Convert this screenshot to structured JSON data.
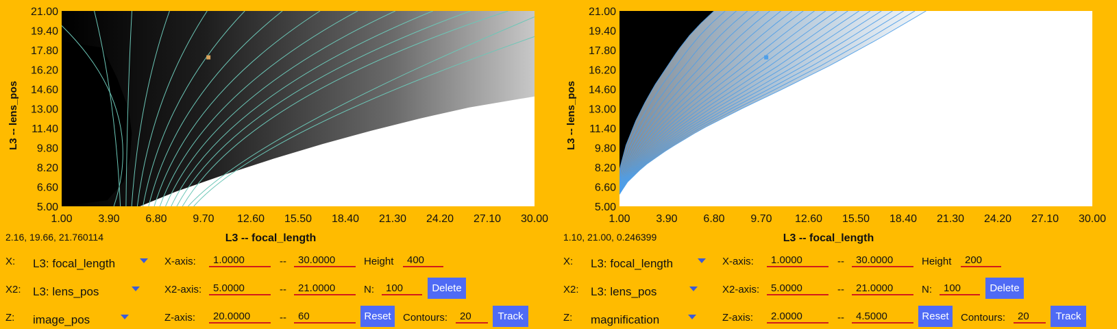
{
  "chart_data": [
    {
      "type": "heatmap",
      "title": "",
      "xlabel": "L3 -- focal_length",
      "ylabel": "L3 -- lens_pos",
      "xlim": [
        1.0,
        30.0
      ],
      "ylim": [
        5.0,
        21.0
      ],
      "x_ticks": [
        "1.00",
        "3.90",
        "6.80",
        "9.70",
        "12.60",
        "15.50",
        "18.40",
        "21.30",
        "24.20",
        "27.10",
        "30.00"
      ],
      "y_ticks": [
        "21.00",
        "19.40",
        "17.80",
        "16.20",
        "14.60",
        "13.00",
        "11.40",
        "9.80",
        "8.20",
        "6.60",
        "5.00"
      ],
      "zlim": [
        20,
        60
      ],
      "contours": 20,
      "colormap": "black-to-white",
      "contour_color": "#6cc7b7",
      "marker": {
        "x": 10.0,
        "y": 17.2,
        "color": "#d8a25a"
      },
      "boundary_fl": [
        2.9,
        6.1,
        8.9,
        11.5,
        14.1,
        16.7,
        19.3,
        21.9,
        24.5,
        27.1,
        29.7
      ],
      "boundary_lp": [
        21.0,
        21.0,
        21.0,
        21.0,
        21.0,
        21.0,
        21.0,
        21.0,
        21.0,
        21.0,
        21.0
      ],
      "right_edge_lp": [
        14.0,
        15.0,
        15.8,
        16.6,
        17.4,
        18.1,
        18.8,
        19.6,
        20.4,
        21.0,
        21.0,
        21.0
      ]
    },
    {
      "type": "heatmap",
      "title": "",
      "xlabel": "L3 -- focal_length",
      "ylabel": "L3 -- lens_pos",
      "xlim": [
        1.0,
        30.0
      ],
      "ylim": [
        5.0,
        21.0
      ],
      "x_ticks": [
        "1.00",
        "3.90",
        "6.80",
        "9.70",
        "12.60",
        "15.50",
        "18.40",
        "21.30",
        "24.20",
        "27.10",
        "30.00"
      ],
      "y_ticks": [
        "21.00",
        "19.40",
        "17.80",
        "16.20",
        "14.60",
        "13.00",
        "11.40",
        "9.80",
        "8.20",
        "6.60",
        "5.00"
      ],
      "zlim": [
        2.0,
        4.5
      ],
      "contours": 20,
      "colormap": "black-to-white",
      "contour_color": "#4f9fe8",
      "marker": {
        "x": 10.0,
        "y": 17.2,
        "color": "#4f9fe8"
      },
      "curve_dark_fl": [
        1.0,
        1.4,
        2.0,
        2.6,
        3.2,
        3.9,
        4.6,
        5.3,
        6.0,
        6.8
      ],
      "curve_dark_lp": [
        8.0,
        10.0,
        12.0,
        13.6,
        15.0,
        16.4,
        17.8,
        19.0,
        20.0,
        21.0
      ],
      "curve_light_fl": [
        1.0,
        1.5,
        2.5,
        4.0,
        6.0,
        8.5,
        11.0,
        14.0,
        17.0,
        19.8
      ],
      "curve_light_lp": [
        6.0,
        7.0,
        8.3,
        9.7,
        11.3,
        13.0,
        14.6,
        16.6,
        18.8,
        21.0
      ]
    }
  ],
  "panels": [
    {
      "readout": "2.16, 19.66, 21.760114",
      "x_label": "X:",
      "x_value": "L3: focal_length",
      "x2_label": "X2:",
      "x2_value": "L3: lens_pos",
      "z_label": "Z:",
      "z_value": "image_pos",
      "xaxis_label": "X-axis:",
      "xaxis_min": "1.0000",
      "xaxis_max": "30.0000",
      "x2axis_label": "X2-axis:",
      "x2axis_min": "5.0000",
      "x2axis_max": "21.0000",
      "zaxis_label": "Z-axis:",
      "zaxis_min": "20.0000",
      "zaxis_max": "60",
      "dash": "--",
      "height_label": "Height",
      "height_value": "400",
      "n_label": "N:",
      "n_value": "100",
      "contours_label": "Contours:",
      "contours_value": "20",
      "delete_label": "Delete",
      "reset_label": "Reset",
      "track_label": "Track"
    },
    {
      "readout": "1.10, 21.00, 0.246399",
      "x_label": "X:",
      "x_value": "L3: focal_length",
      "x2_label": "X2:",
      "x2_value": "L3: lens_pos",
      "z_label": "Z:",
      "z_value": "magnification",
      "xaxis_label": "X-axis:",
      "xaxis_min": "1.0000",
      "xaxis_max": "30.0000",
      "x2axis_label": "X2-axis:",
      "x2axis_min": "5.0000",
      "x2axis_max": "21.0000",
      "zaxis_label": "Z-axis:",
      "zaxis_min": "2.0000",
      "zaxis_max": "4.5000",
      "dash": "--",
      "height_label": "Height",
      "height_value": "200",
      "n_label": "N:",
      "n_value": "100",
      "contours_label": "Contours:",
      "contours_value": "20",
      "delete_label": "Delete",
      "reset_label": "Reset",
      "track_label": "Track"
    }
  ]
}
